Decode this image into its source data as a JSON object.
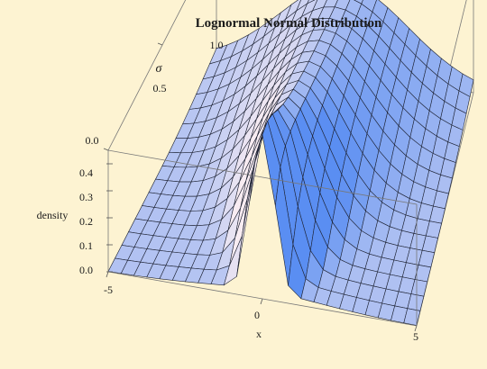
{
  "chart_data": {
    "type": "surface3d",
    "title": "Lognormal Normal Distribution",
    "xlabel": "x",
    "ylabel": "σ",
    "zlabel": "density",
    "x_range": [
      -5,
      5
    ],
    "y_range": [
      0.0,
      1.0
    ],
    "z_range": [
      0.0,
      0.45
    ],
    "x_ticks": [
      "-5",
      "0",
      "5"
    ],
    "y_ticks": [
      "0.0",
      "0.5",
      "1.0"
    ],
    "z_ticks": [
      "0.0",
      "0.1",
      "0.2",
      "0.3",
      "0.4"
    ],
    "grid_x_steps": 24,
    "grid_y_steps": 16,
    "surface": "0.4 * exp(-x^2 / (2*(1 + 2*σ)^2)) / sqrt(1 + 2*σ), with a sharp ridge near x=0 at σ=1",
    "colors": {
      "surface_light": "#f6ecf0",
      "surface_dark": "#5b8ef2",
      "background": "#fdf3d2"
    }
  }
}
